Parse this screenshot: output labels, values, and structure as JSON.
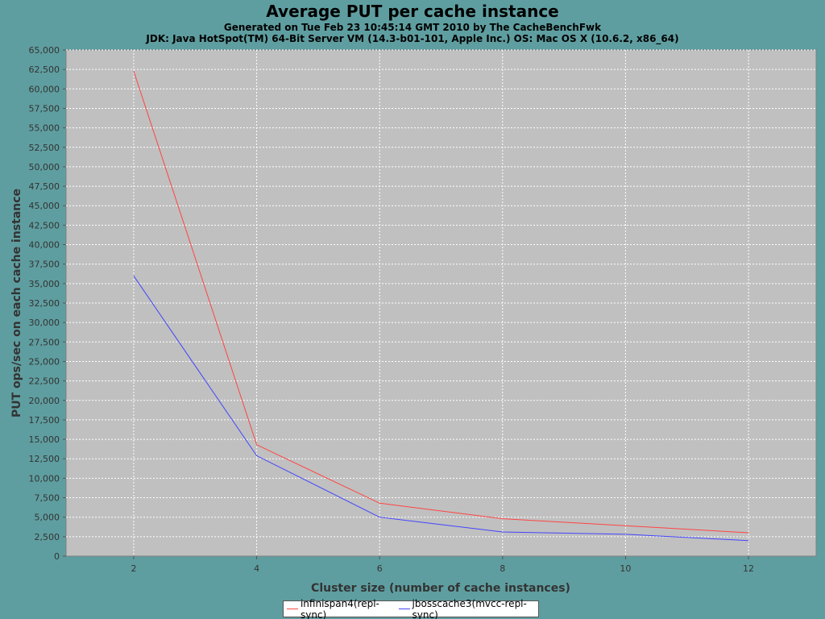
{
  "chart_data": {
    "type": "line",
    "title": "Average PUT per cache instance",
    "subtitles": [
      "Generated on Tue Feb 23 10:45:14 GMT 2010 by The CacheBenchFwk",
      "JDK: Java HotSpot(TM) 64-Bit Server VM (14.3-b01-101, Apple Inc.) OS: Mac OS X (10.6.2, x86_64)"
    ],
    "xlabel": "Cluster size (number of cache instances)",
    "ylabel": "PUT ops/sec on each cache instance",
    "xlim": [
      0.9,
      13.1
    ],
    "ylim": [
      0,
      65000
    ],
    "xticks": [
      2,
      4,
      6,
      8,
      10,
      12
    ],
    "yticks": [
      0,
      2500,
      5000,
      7500,
      10000,
      12500,
      15000,
      17500,
      20000,
      22500,
      25000,
      27500,
      30000,
      32500,
      35000,
      37500,
      40000,
      42500,
      45000,
      47500,
      50000,
      52500,
      55000,
      57500,
      60000,
      62500,
      65000
    ],
    "ytick_labels": [
      "0",
      "2,500",
      "5,000",
      "7,500",
      "10,000",
      "12,500",
      "15,000",
      "17,500",
      "20,000",
      "22,500",
      "25,000",
      "27,500",
      "30,000",
      "32,500",
      "35,000",
      "37,500",
      "40,000",
      "42,500",
      "45,000",
      "47,500",
      "50,000",
      "52,500",
      "55,000",
      "57,500",
      "60,000",
      "62,500",
      "65,000"
    ],
    "grid": true,
    "legend_position": "bottom",
    "series": [
      {
        "name": "infinispan4(repl-sync)",
        "color": "#ff4444",
        "x": [
          2,
          4,
          6,
          8,
          10,
          12
        ],
        "y": [
          62300,
          14300,
          6800,
          4800,
          3900,
          3000
        ]
      },
      {
        "name": "jbosscache3(mvcc-repl-sync)",
        "color": "#4444ff",
        "x": [
          2,
          4,
          6,
          8,
          10,
          12
        ],
        "y": [
          36000,
          12900,
          5000,
          3100,
          2800,
          2000
        ]
      }
    ]
  },
  "colors": {
    "background": "#5f9ea0",
    "plot_background": "#c0c0c0",
    "gridline": "#ffffff"
  }
}
